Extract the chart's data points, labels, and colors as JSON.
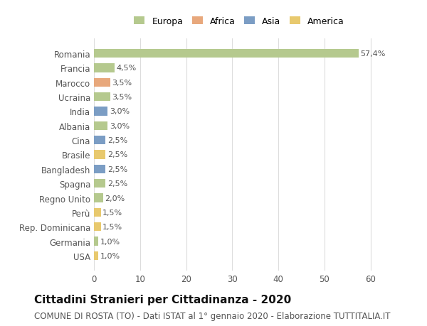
{
  "categories": [
    "Romania",
    "Francia",
    "Marocco",
    "Ucraina",
    "India",
    "Albania",
    "Cina",
    "Brasile",
    "Bangladesh",
    "Spagna",
    "Regno Unito",
    "Perù",
    "Rep. Dominicana",
    "Germania",
    "USA"
  ],
  "values": [
    57.4,
    4.5,
    3.5,
    3.5,
    3.0,
    3.0,
    2.5,
    2.5,
    2.5,
    2.5,
    2.0,
    1.5,
    1.5,
    1.0,
    1.0
  ],
  "labels": [
    "57,4%",
    "4,5%",
    "3,5%",
    "3,5%",
    "3,0%",
    "3,0%",
    "2,5%",
    "2,5%",
    "2,5%",
    "2,5%",
    "2,0%",
    "1,5%",
    "1,5%",
    "1,0%",
    "1,0%"
  ],
  "colors": [
    "#b5c98e",
    "#b5c98e",
    "#e8a87c",
    "#b5c98e",
    "#7b9dc4",
    "#b5c98e",
    "#7b9dc4",
    "#e8c96e",
    "#7b9dc4",
    "#b5c98e",
    "#b5c98e",
    "#e8c96e",
    "#e8c96e",
    "#b5c98e",
    "#e8c96e"
  ],
  "legend_labels": [
    "Europa",
    "Africa",
    "Asia",
    "America"
  ],
  "legend_colors": [
    "#b5c98e",
    "#e8a87c",
    "#7b9dc4",
    "#e8c96e"
  ],
  "title": "Cittadini Stranieri per Cittadinanza - 2020",
  "subtitle": "COMUNE DI ROSTA (TO) - Dati ISTAT al 1° gennaio 2020 - Elaborazione TUTTITALIA.IT",
  "xlim": [
    0,
    63
  ],
  "xticks": [
    0,
    10,
    20,
    30,
    40,
    50,
    60
  ],
  "background_color": "#ffffff",
  "grid_color": "#dddddd",
  "bar_height": 0.6,
  "title_fontsize": 11,
  "subtitle_fontsize": 8.5,
  "label_fontsize": 8,
  "tick_fontsize": 8.5
}
